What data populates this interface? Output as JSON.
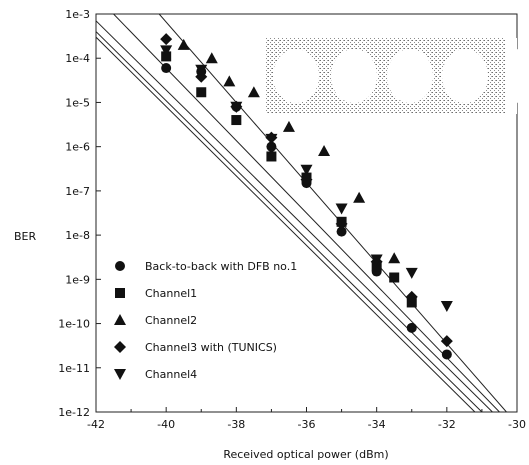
{
  "chart_data": {
    "type": "scatter",
    "title": "",
    "xlabel": "Received optical power (dBm)",
    "ylabel": "BER",
    "xlim": [
      -42,
      -30
    ],
    "ylim_log10": [
      -12,
      -3
    ],
    "y_scale": "log",
    "x_ticks": [
      "-42",
      "-40",
      "-38",
      "-36",
      "-34",
      "-32",
      "-30"
    ],
    "y_ticks": [
      "1e-12",
      "1e-11",
      "1e-10",
      "1e-9",
      "1e-8",
      "1e-7",
      "1e-6",
      "1e-5",
      "1e-4",
      "1e-3"
    ],
    "grid": false,
    "legend_position": "lower-left",
    "inset": "eye diagram (top-right)",
    "series": [
      {
        "name": "Back-to-back with DFB no.1",
        "marker": "circle",
        "points": [
          [
            -40,
            6e-05
          ],
          [
            -39,
            5e-05
          ],
          [
            -38,
            8e-06
          ],
          [
            -37,
            1e-06
          ],
          [
            -36,
            1.5e-07
          ],
          [
            -35,
            1.2e-08
          ],
          [
            -34,
            1.5e-09
          ],
          [
            -33,
            8e-11
          ],
          [
            -32,
            2e-11
          ]
        ]
      },
      {
        "name": "Channel1",
        "marker": "square",
        "points": [
          [
            -40,
            0.00011
          ],
          [
            -39,
            1.7e-05
          ],
          [
            -38,
            4e-06
          ],
          [
            -37,
            6e-07
          ],
          [
            -36,
            2e-07
          ],
          [
            -35,
            2e-08
          ],
          [
            -34,
            2e-09
          ],
          [
            -33.5,
            1.1e-09
          ],
          [
            -33,
            3e-10
          ]
        ]
      },
      {
        "name": "Channel2",
        "marker": "triangle-up",
        "points": [
          [
            -39.5,
            0.0002
          ],
          [
            -38.7,
            0.0001
          ],
          [
            -38.2,
            3e-05
          ],
          [
            -37.5,
            1.7e-05
          ],
          [
            -36.5,
            2.8e-06
          ],
          [
            -35.5,
            8e-07
          ],
          [
            -34.5,
            7e-08
          ],
          [
            -33.5,
            3e-09
          ]
        ]
      },
      {
        "name": "Channel3 with (TUNICS)",
        "marker": "diamond",
        "points": [
          [
            -40,
            0.00027
          ],
          [
            -39,
            3.8e-05
          ],
          [
            -38,
            8e-06
          ],
          [
            -37,
            1.6e-06
          ],
          [
            -36,
            1.8e-07
          ],
          [
            -35,
            1.8e-08
          ],
          [
            -34,
            2.5e-09
          ],
          [
            -33,
            4e-10
          ],
          [
            -32,
            4e-11
          ]
        ]
      },
      {
        "name": "Channel4",
        "marker": "triangle-down",
        "points": [
          [
            -40,
            0.00015
          ],
          [
            -39,
            5.5e-05
          ],
          [
            -38,
            8e-06
          ],
          [
            -37,
            1.5e-06
          ],
          [
            -36,
            3e-07
          ],
          [
            -35,
            4e-08
          ],
          [
            -34,
            2.8e-09
          ],
          [
            -33,
            1.4e-09
          ],
          [
            -32,
            2.5e-10
          ]
        ]
      }
    ],
    "fit_lines": [
      {
        "from": [
          -42,
          0.0007
        ],
        "to": [
          -30.7,
          1e-12
        ]
      },
      {
        "from": [
          -42,
          0.0004
        ],
        "to": [
          -31.0,
          1e-12
        ]
      },
      {
        "from": [
          -42,
          0.0003
        ],
        "to": [
          -31.2,
          1e-12
        ]
      },
      {
        "from": [
          -41.5,
          0.001
        ],
        "to": [
          -30.5,
          1e-12
        ]
      },
      {
        "from": [
          -40.2,
          0.001
        ],
        "to": [
          -30.3,
          1e-12
        ]
      }
    ]
  }
}
